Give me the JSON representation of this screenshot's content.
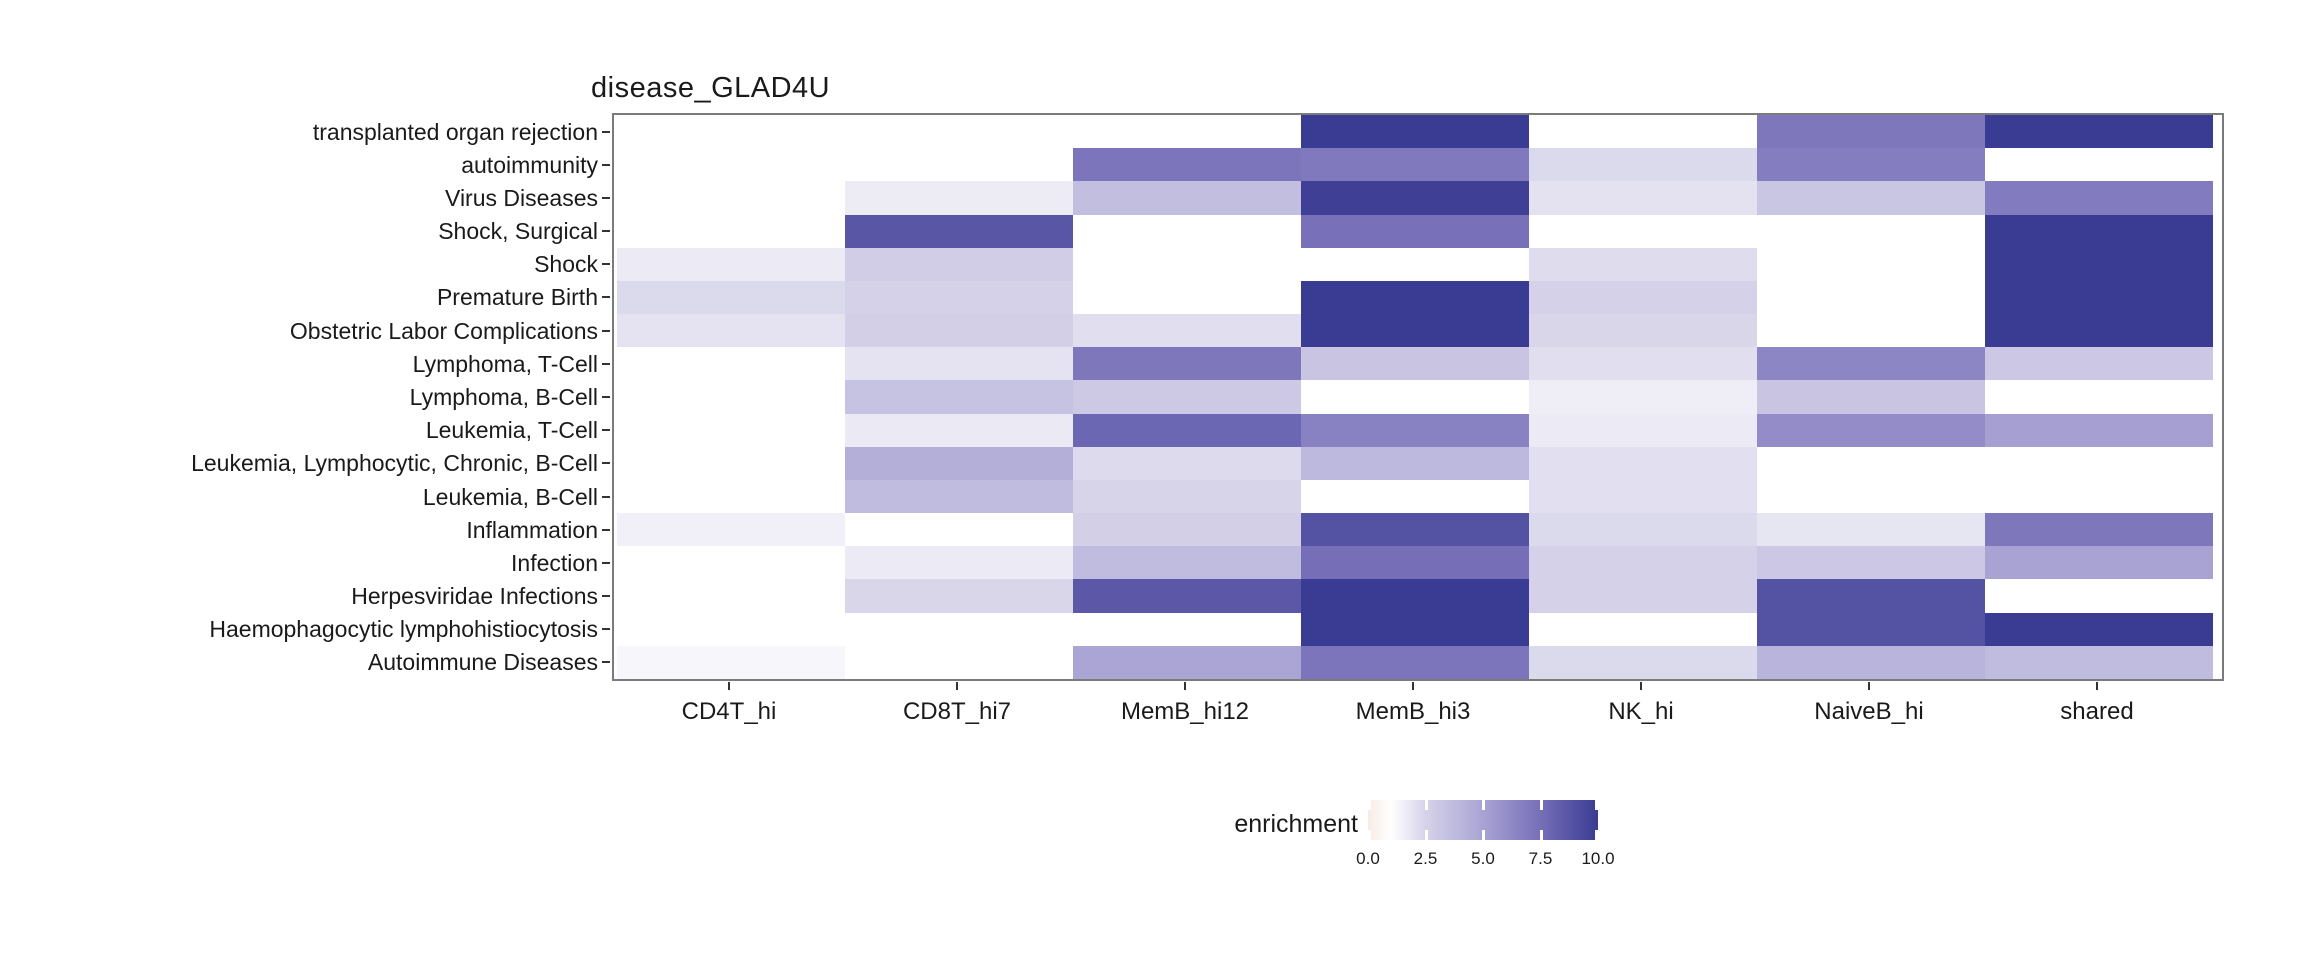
{
  "chart_data": {
    "type": "heatmap",
    "title": "disease_GLAD4U",
    "xlabel": "",
    "ylabel": "",
    "grid": false,
    "columns": [
      "CD4T_hi",
      "CD8T_hi7",
      "MemB_hi12",
      "MemB_hi3",
      "NK_hi",
      "NaiveB_hi",
      "shared"
    ],
    "rows": [
      "transplanted organ rejection",
      "autoimmunity",
      "Virus Diseases",
      "Shock, Surgical",
      "Shock",
      "Premature Birth",
      "Obstetric Labor Complications",
      "Lymphoma, T-Cell",
      "Lymphoma, B-Cell",
      "Leukemia, T-Cell",
      "Leukemia, Lymphocytic, Chronic, B-Cell",
      "Leukemia, B-Cell",
      "Inflammation",
      "Infection",
      "Herpesviridae Infections",
      "Haemophagocytic lymphohistiocytosis",
      "Autoimmune Diseases"
    ],
    "values": [
      [
        null,
        null,
        null,
        10,
        null,
        7.1,
        10
      ],
      [
        null,
        null,
        7.2,
        7.0,
        2.3,
        6.8,
        null
      ],
      [
        null,
        1.65,
        3.6,
        9.8,
        2.0,
        3.2,
        6.9
      ],
      [
        null,
        8.7,
        null,
        7.4,
        null,
        null,
        10
      ],
      [
        1.7,
        2.8,
        null,
        null,
        2.2,
        null,
        10
      ],
      [
        2.3,
        2.6,
        null,
        10,
        2.6,
        null,
        10
      ],
      [
        1.95,
        2.7,
        2.1,
        10,
        2.4,
        null,
        10
      ],
      [
        null,
        1.95,
        7.1,
        3.3,
        2.1,
        6.4,
        3.1
      ],
      [
        null,
        3.4,
        3.0,
        null,
        1.6,
        3.3,
        null
      ],
      [
        null,
        1.75,
        7.9,
        6.6,
        1.7,
        6.1,
        5.2
      ],
      [
        null,
        4.4,
        2.25,
        3.9,
        2.05,
        null,
        null
      ],
      [
        null,
        3.7,
        2.45,
        null,
        2.05,
        null,
        null
      ],
      [
        1.5,
        null,
        2.7,
        8.9,
        2.3,
        1.9,
        7.1
      ],
      [
        null,
        1.7,
        3.7,
        7.5,
        2.6,
        3.1,
        5.0
      ],
      [
        null,
        2.4,
        8.6,
        10,
        2.6,
        8.9,
        null
      ],
      [
        null,
        null,
        null,
        10,
        null,
        8.9,
        10
      ],
      [
        1.3,
        null,
        4.9,
        7.2,
        2.3,
        4.1,
        3.7
      ]
    ],
    "legend": {
      "title": "enrichment",
      "position": "bottom",
      "range": [
        0,
        10
      ],
      "tick_labels": [
        "0.0",
        "2.5",
        "5.0",
        "7.5",
        "10.0"
      ],
      "tick_values": [
        0,
        2.5,
        5,
        7.5,
        10
      ],
      "gradient_stops": [
        {
          "value": 0,
          "color": "#f8ece3"
        },
        {
          "value": 1,
          "color": "#ffffff"
        },
        {
          "value": 2.5,
          "color": "#d6d3e9"
        },
        {
          "value": 5,
          "color": "#a9a3d4"
        },
        {
          "value": 7.5,
          "color": "#766fb8"
        },
        {
          "value": 10,
          "color": "#3a3b92"
        }
      ]
    },
    "colors": {
      "panel_border": "#7b7b7b",
      "tick": "#333333",
      "text": "#1a1a1a",
      "na_cell": "#ffffff"
    }
  }
}
